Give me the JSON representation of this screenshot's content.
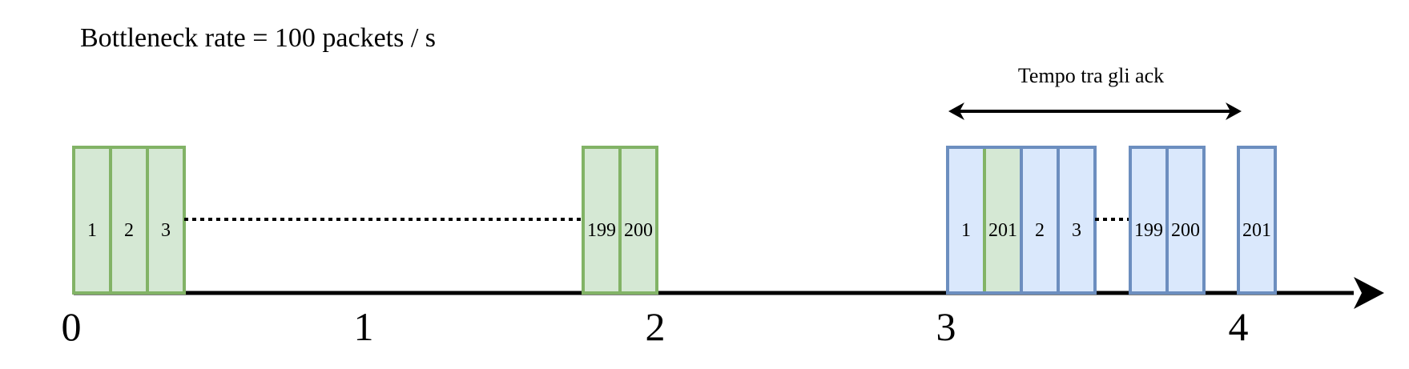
{
  "title": "Bottleneck rate = 100 packets / s",
  "annotation": "Tempo tra gli ack",
  "colors": {
    "green_fill": "#d5e8d4",
    "green_stroke": "#82b366",
    "blue_fill": "#dae8fc",
    "blue_stroke": "#6c8ebf",
    "axis": "#000000",
    "text": "#000000"
  },
  "axis_labels": [
    "0",
    "1",
    "2",
    "3",
    "4"
  ],
  "packets_sent": [
    "1",
    "2",
    "3",
    "199",
    "200"
  ],
  "packets_acked": [
    "1",
    "201",
    "2",
    "3",
    "199",
    "200",
    "201"
  ]
}
